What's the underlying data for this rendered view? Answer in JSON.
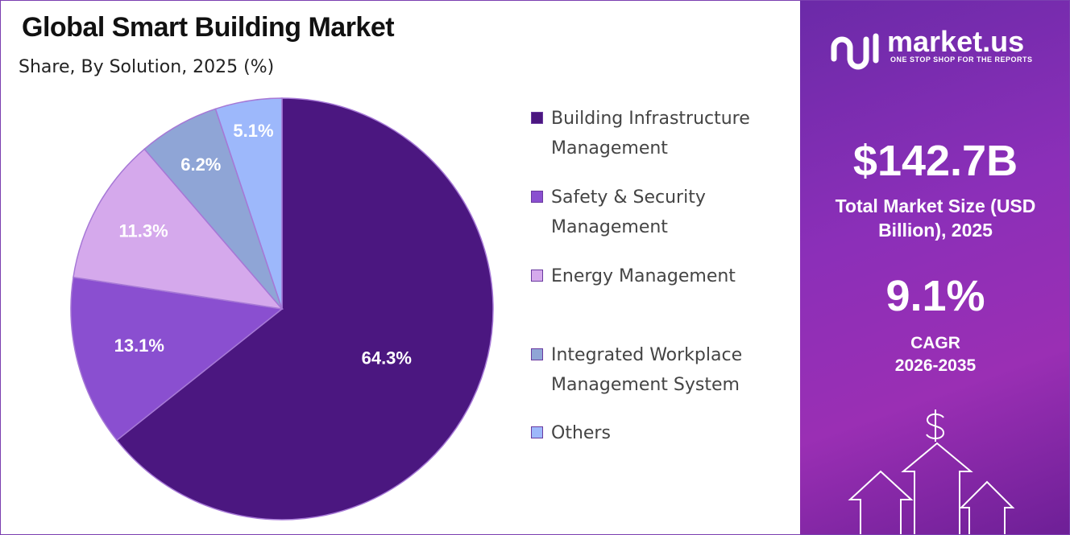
{
  "chart_data": {
    "type": "pie",
    "title": "Global Smart Building Market",
    "subtitle": "Share, By Solution, 2025 (%)",
    "categories": [
      "Building Infrastructure Management",
      "Safety & Security Management",
      "Energy Management",
      "Integrated Workplace Management System",
      "Others"
    ],
    "values": [
      64.3,
      13.1,
      11.3,
      6.2,
      5.1
    ],
    "value_labels": [
      "64.3%",
      "13.1%",
      "11.3%",
      "6.2%",
      "5.1%"
    ],
    "colors": [
      "#4b1780",
      "#8a4fd0",
      "#d5a9ec",
      "#8fa5d6",
      "#9db8fb"
    ]
  },
  "panel": {
    "brand": "market.us",
    "tagline": "ONE STOP SHOP FOR THE REPORTS",
    "market_size": "$142.7B",
    "market_size_label": "Total Market Size (USD Billion), 2025",
    "cagr": "9.1%",
    "cagr_label": "CAGR",
    "cagr_period": "2026-2035"
  }
}
